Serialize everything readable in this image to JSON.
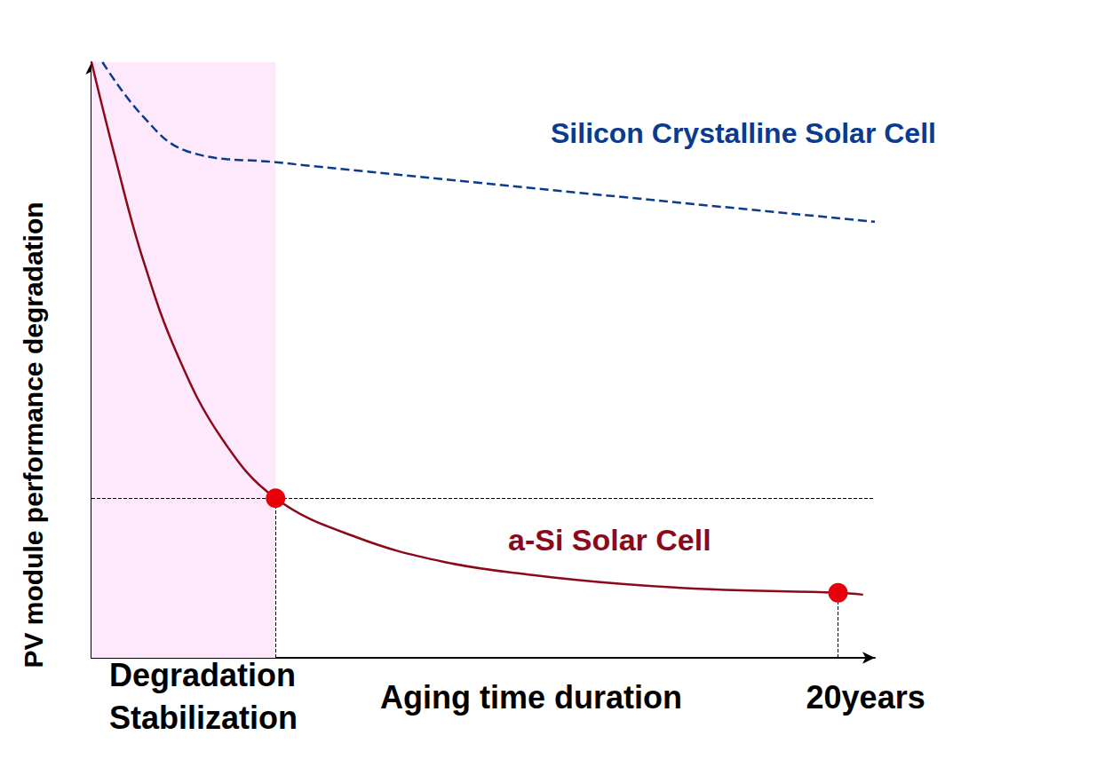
{
  "chart_data": {
    "type": "line",
    "y_label": "PV module performance degradation",
    "x_label": "Aging time duration",
    "xlim": [
      0,
      100
    ],
    "ylim": [
      0,
      100
    ],
    "tick_labels": false,
    "grid": false,
    "series": [
      {
        "name": "Silicon Crystalline Solar Cell",
        "color": "#0b3a8f",
        "line_style": "dashed",
        "x": [
          1.4,
          6.5,
          12.1,
          23.5,
          100
        ],
        "values": [
          100,
          91,
          85.1,
          83.2,
          73.2
        ]
      },
      {
        "name": "a-Si Solar Cell",
        "color": "#8b0a1a",
        "line_style": "solid",
        "x": [
          0,
          3.1,
          6.5,
          11,
          16.7,
          23.5,
          33.7,
          45,
          56.3,
          67.7,
          79,
          95.3,
          98.5
        ],
        "values": [
          100,
          83.6,
          67.2,
          50.8,
          36.7,
          26.8,
          20.3,
          16.1,
          13.9,
          12.4,
          11.5,
          10.9,
          10.6
        ]
      }
    ],
    "annotations": [
      {
        "text": "Degradation\nStabilization",
        "x": 23.5,
        "y": 26.8,
        "color": "#e8000b"
      },
      {
        "text": "20years",
        "x": 95.3,
        "y": 10.9,
        "color": "#e8000b"
      }
    ]
  }
}
